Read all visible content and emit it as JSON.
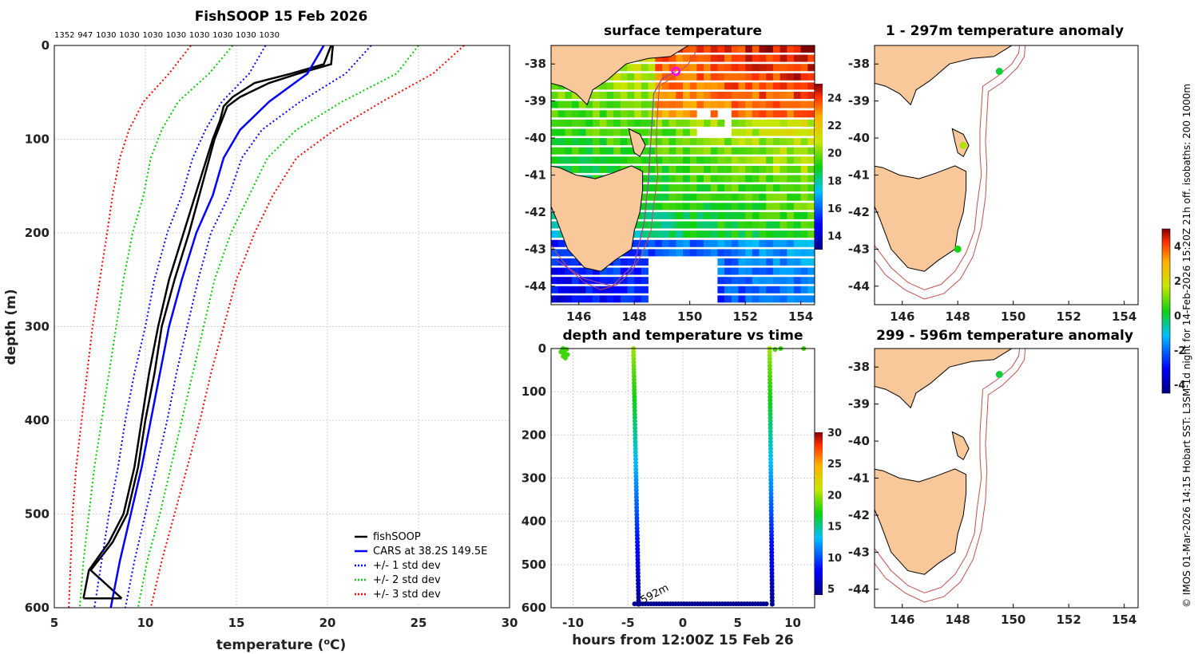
{
  "side_text": "© IMOS 01-Mar-2026 14:15 Hobart SST: L3SM-1d night for 14-Feb-2026 15:20Z 21h off. isobaths: 200  1000m",
  "chart_data": [
    {
      "id": "profile",
      "type": "line",
      "title": "FishSOOP 15 Feb 2026",
      "xlabel": "temperature (°C)",
      "ylabel": "depth (m)",
      "xlim": [
        5,
        30
      ],
      "ylim": [
        0,
        600
      ],
      "xticks": [
        5,
        10,
        15,
        20,
        25,
        30
      ],
      "yticks": [
        0,
        100,
        200,
        300,
        400,
        500,
        600
      ],
      "top_labels": [
        "1352",
        "947",
        "1030",
        "1030",
        "1030",
        "1030",
        "1030",
        "1030",
        "1030",
        "1030"
      ],
      "legend": [
        "fishSOOP",
        "CARS at 38.2S 149.5E",
        "+/- 1 std dev",
        "+/- 2 std dev",
        "+/- 3 std dev"
      ],
      "series": [
        {
          "name": "fishSOOP down",
          "color": "#000000",
          "depth": [
            0,
            20,
            30,
            40,
            55,
            65,
            80,
            100,
            150,
            200,
            250,
            300,
            350,
            400,
            450,
            500,
            530,
            560,
            590
          ],
          "values": [
            20.2,
            19.8,
            18.0,
            16.0,
            14.8,
            14.3,
            14.1,
            13.7,
            12.9,
            12.1,
            11.3,
            10.7,
            10.2,
            9.8,
            9.4,
            8.8,
            8.0,
            6.9,
            6.6
          ]
        },
        {
          "name": "fishSOOP up",
          "color": "#000000",
          "depth": [
            590,
            560,
            530,
            500,
            450,
            400,
            350,
            300,
            250,
            200,
            150,
            100,
            80,
            65,
            55,
            40,
            30,
            20,
            0
          ],
          "values": [
            8.7,
            7.0,
            8.2,
            9.0,
            9.6,
            10.0,
            10.5,
            10.9,
            11.6,
            12.4,
            13.1,
            13.8,
            14.2,
            14.5,
            15.2,
            16.8,
            18.4,
            20.2,
            20.3
          ]
        },
        {
          "name": "CARS at 38.2S 149.5E",
          "color": "#0000ff",
          "depth": [
            0,
            30,
            60,
            90,
            120,
            160,
            200,
            250,
            300,
            350,
            400,
            450,
            500,
            550,
            600
          ],
          "values": [
            19.8,
            18.9,
            16.8,
            15.2,
            14.3,
            13.7,
            12.8,
            12.0,
            11.3,
            10.8,
            10.3,
            9.8,
            9.2,
            8.6,
            8.1
          ]
        },
        {
          "name": "+/- 1 std dev lo",
          "color": "#0000ff",
          "dotted": true,
          "depth": [
            0,
            30,
            60,
            90,
            120,
            160,
            200,
            250,
            300,
            350,
            400,
            450,
            500,
            550,
            600
          ],
          "values": [
            16.6,
            15.7,
            14.2,
            13.3,
            12.6,
            12.0,
            11.2,
            10.5,
            10.0,
            9.4,
            8.9,
            8.5,
            8.0,
            7.6,
            7.2
          ]
        },
        {
          "name": "+/- 1 std dev hi",
          "color": "#0000ff",
          "dotted": true,
          "depth": [
            0,
            30,
            60,
            90,
            120,
            160,
            200,
            250,
            300,
            350,
            400,
            450,
            500,
            550,
            600
          ],
          "values": [
            22.4,
            21.0,
            18.5,
            16.4,
            15.3,
            14.6,
            13.6,
            12.9,
            12.3,
            11.7,
            11.2,
            10.6,
            10.0,
            9.4,
            8.9
          ]
        },
        {
          "name": "+/- 2 std dev lo",
          "color": "#00cc00",
          "dotted": true,
          "depth": [
            0,
            30,
            60,
            90,
            120,
            160,
            200,
            250,
            300,
            350,
            400,
            450,
            500,
            550,
            600
          ],
          "values": [
            14.8,
            13.5,
            11.8,
            10.9,
            10.3,
            9.9,
            9.3,
            8.8,
            8.4,
            8.0,
            7.6,
            7.2,
            6.9,
            6.6,
            6.4
          ]
        },
        {
          "name": "+/- 2 std dev hi",
          "color": "#00cc00",
          "dotted": true,
          "depth": [
            0,
            30,
            60,
            90,
            120,
            160,
            200,
            250,
            300,
            350,
            400,
            450,
            500,
            550,
            600
          ],
          "values": [
            25.0,
            23.8,
            20.8,
            18.3,
            16.7,
            15.7,
            14.7,
            13.8,
            13.2,
            12.6,
            12.0,
            11.4,
            10.8,
            10.1,
            9.6
          ]
        },
        {
          "name": "+/- 3 std dev lo",
          "color": "#ff0000",
          "dotted": true,
          "depth": [
            0,
            30,
            60,
            90,
            120,
            160,
            200,
            250,
            300,
            350,
            400,
            450,
            500,
            550,
            600
          ],
          "values": [
            12.5,
            11.3,
            9.9,
            9.1,
            8.6,
            8.2,
            7.9,
            7.5,
            7.1,
            6.8,
            6.5,
            6.2,
            6.0,
            5.9,
            5.8
          ]
        },
        {
          "name": "+/- 3 std dev hi",
          "color": "#ff0000",
          "dotted": true,
          "depth": [
            0,
            30,
            60,
            90,
            120,
            160,
            200,
            250,
            300,
            350,
            400,
            450,
            500,
            550,
            600
          ],
          "values": [
            27.5,
            25.8,
            23.0,
            20.4,
            18.3,
            17.0,
            16.0,
            15.0,
            14.3,
            13.6,
            13.0,
            12.3,
            11.6,
            10.9,
            10.3
          ]
        }
      ]
    },
    {
      "id": "sst",
      "type": "heatmap",
      "title": "surface temperature",
      "xlim": [
        145,
        154.5
      ],
      "ylim": [
        -44.5,
        -37.5
      ],
      "xticks": [
        146,
        148,
        150,
        152,
        154
      ],
      "yticks": [
        -38,
        -39,
        -40,
        -41,
        -42,
        -43,
        -44
      ],
      "colorbar": {
        "min": 13,
        "max": 25,
        "ticks": [
          14,
          16,
          18,
          20,
          22,
          24
        ]
      }
    },
    {
      "id": "anom1",
      "type": "scatter",
      "title": "1 - 297m temperature anomaly",
      "xlim": [
        145,
        154.5
      ],
      "ylim": [
        -44.5,
        -37.5
      ],
      "xticks": [
        146,
        148,
        150,
        152,
        154
      ],
      "yticks": [
        -38,
        -39,
        -40,
        -41,
        -42,
        -43,
        -44
      ],
      "points": [
        {
          "lon": 149.5,
          "lat": -38.2,
          "anomaly": 0.0
        },
        {
          "lon": 148.2,
          "lat": -40.2,
          "anomaly": 1.5
        },
        {
          "lon": 148.0,
          "lat": -43.0,
          "anomaly": 0.3
        }
      ]
    },
    {
      "id": "anom2",
      "type": "scatter",
      "title": "299 - 596m temperature anomaly",
      "xlim": [
        145,
        154.5
      ],
      "ylim": [
        -44.5,
        -37.5
      ],
      "xticks": [
        146,
        148,
        150,
        152,
        154
      ],
      "yticks": [
        -38,
        -39,
        -40,
        -41,
        -42,
        -43,
        -44
      ],
      "points": [
        {
          "lon": 149.5,
          "lat": -38.2,
          "anomaly": 0.0
        }
      ],
      "colorbar": {
        "min": -4.5,
        "max": 5,
        "ticks": [
          -4,
          -2,
          0,
          2,
          4
        ]
      }
    },
    {
      "id": "timeline",
      "type": "scatter",
      "title": "depth and temperature vs time",
      "xlabel": "hours from 12:00Z 15 Feb 26",
      "xlim": [
        -12,
        12
      ],
      "ylim": [
        0,
        600
      ],
      "xticks": [
        -10,
        -5,
        0,
        5,
        10
      ],
      "yticks": [
        0,
        100,
        200,
        300,
        400,
        500,
        600
      ],
      "annotation": "592m",
      "colorbar": {
        "min": 4,
        "max": 30,
        "ticks": [
          5,
          10,
          15,
          20,
          25,
          30
        ]
      }
    }
  ]
}
